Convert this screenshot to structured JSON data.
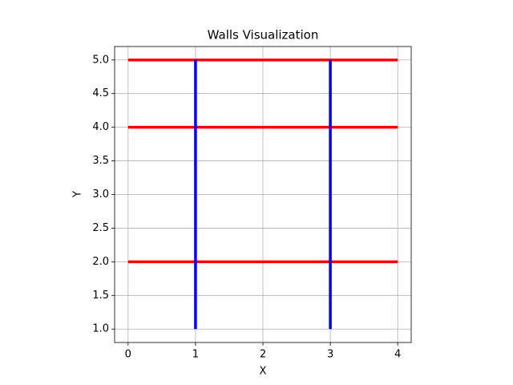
{
  "chart_data": {
    "type": "line",
    "title": "Walls Visualization",
    "x_label": "X",
    "y_label": "Y",
    "series": [
      {
        "color": "#ff0000",
        "x": [
          0,
          4
        ],
        "values": [
          5,
          5
        ]
      },
      {
        "color": "#ff0000",
        "x": [
          0,
          4
        ],
        "values": [
          4,
          4
        ]
      },
      {
        "color": "#ff0000",
        "x": [
          0,
          4
        ],
        "values": [
          2,
          2
        ]
      },
      {
        "color": "#0000ff",
        "x": [
          1,
          1
        ],
        "values": [
          1,
          5
        ]
      },
      {
        "color": "#0000ff",
        "x": [
          3,
          3
        ],
        "values": [
          1,
          5
        ]
      }
    ],
    "xlim": [
      -0.2,
      4.2
    ],
    "ylim": [
      0.8,
      5.2
    ],
    "xticks": [
      0,
      1,
      2,
      3,
      4
    ],
    "yticks": [
      {
        "value": 1,
        "label": "1.0"
      },
      {
        "value": 1.5,
        "label": "1.5"
      },
      {
        "value": 2,
        "label": "2.0"
      },
      {
        "value": 2.5,
        "label": "2.5"
      },
      {
        "value": 3,
        "label": "3.0"
      },
      {
        "value": 3.5,
        "label": "3.5"
      },
      {
        "value": 4,
        "label": "4.0"
      },
      {
        "value": 4.5,
        "label": "4.5"
      },
      {
        "value": 5,
        "label": "5.0"
      }
    ],
    "grid": true
  }
}
